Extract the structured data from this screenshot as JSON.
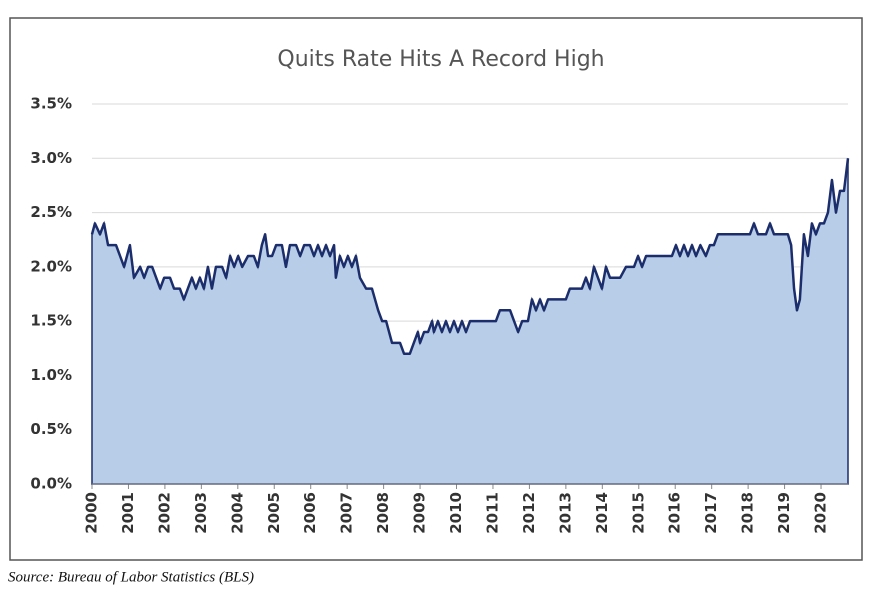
{
  "chart_data": {
    "type": "area",
    "title": "Quits Rate Hits A Record High",
    "source": "Source: Bureau of Labor Statistics (BLS)",
    "line_color": "#1c2d6b",
    "fill_color": "#b8cde8",
    "grid": true,
    "xlim": [
      2000,
      2020.74
    ],
    "xticks": [
      2000,
      2001,
      2002,
      2003,
      2004,
      2005,
      2006,
      2007,
      2008,
      2009,
      2010,
      2011,
      2012,
      2013,
      2014,
      2015,
      2016,
      2017,
      2018,
      2019,
      2020
    ],
    "ylim": [
      0,
      3.5
    ],
    "yticks": [
      {
        "value": 0,
        "label": "0.0%"
      },
      {
        "value": 0.5,
        "label": "0.5%"
      },
      {
        "value": 1,
        "label": "1.0%"
      },
      {
        "value": 1.5,
        "label": "1.5%"
      },
      {
        "value": 2,
        "label": "2.0%"
      },
      {
        "value": 2.5,
        "label": "2.5%"
      },
      {
        "value": 3,
        "label": "3.0%"
      },
      {
        "value": 3.5,
        "label": "3.5%"
      }
    ],
    "x": [
      2000.0,
      2000.08,
      2000.22,
      2000.33,
      2000.44,
      2000.66,
      2000.77,
      2000.88,
      2001.04,
      2001.15,
      2001.32,
      2001.43,
      2001.54,
      2001.65,
      2001.76,
      2001.87,
      2001.98,
      2002.14,
      2002.25,
      2002.41,
      2002.52,
      2002.63,
      2002.74,
      2002.85,
      2002.96,
      2003.07,
      2003.18,
      2003.29,
      2003.4,
      2003.57,
      2003.68,
      2003.79,
      2003.9,
      2004.01,
      2004.12,
      2004.28,
      2004.44,
      2004.55,
      2004.66,
      2004.75,
      2004.83,
      2004.94,
      2005.05,
      2005.21,
      2005.32,
      2005.43,
      2005.6,
      2005.71,
      2005.82,
      2005.98,
      2006.09,
      2006.2,
      2006.31,
      2006.42,
      2006.53,
      2006.64,
      2006.69,
      2006.8,
      2006.91,
      2007.02,
      2007.13,
      2007.24,
      2007.35,
      2007.52,
      2007.68,
      2007.85,
      2007.96,
      2008.07,
      2008.23,
      2008.45,
      2008.56,
      2008.72,
      2008.83,
      2008.94,
      2009.0,
      2009.11,
      2009.22,
      2009.33,
      2009.38,
      2009.49,
      2009.6,
      2009.71,
      2009.82,
      2009.93,
      2010.04,
      2010.15,
      2010.26,
      2010.37,
      2010.92,
      2011.08,
      2011.19,
      2011.47,
      2011.58,
      2011.69,
      2011.8,
      2011.96,
      2012.07,
      2012.18,
      2012.29,
      2012.4,
      2012.51,
      2013.0,
      2013.11,
      2013.44,
      2013.55,
      2013.66,
      2013.77,
      2013.88,
      2013.99,
      2014.1,
      2014.21,
      2014.49,
      2014.65,
      2014.87,
      2014.98,
      2015.09,
      2015.2,
      2015.31,
      2015.91,
      2016.02,
      2016.13,
      2016.24,
      2016.35,
      2016.46,
      2016.57,
      2016.69,
      2016.84,
      2016.95,
      2017.06,
      2017.17,
      2018.05,
      2018.16,
      2018.27,
      2018.49,
      2018.6,
      2018.71,
      2019.09,
      2019.18,
      2019.26,
      2019.34,
      2019.42,
      2019.53,
      2019.64,
      2019.75,
      2019.86,
      2019.97,
      2020.08,
      2020.19,
      2020.3,
      2020.41,
      2020.52,
      2020.63,
      2020.74
    ],
    "values": [
      2.3,
      2.4,
      2.3,
      2.4,
      2.2,
      2.2,
      2.1,
      2.0,
      2.2,
      1.9,
      2.0,
      1.9,
      2.0,
      2.0,
      1.9,
      1.8,
      1.9,
      1.9,
      1.8,
      1.8,
      1.7,
      1.8,
      1.9,
      1.8,
      1.9,
      1.8,
      2.0,
      1.8,
      2.0,
      2.0,
      1.9,
      2.1,
      2.0,
      2.1,
      2.0,
      2.1,
      2.1,
      2.0,
      2.2,
      2.3,
      2.1,
      2.1,
      2.2,
      2.2,
      2.0,
      2.2,
      2.2,
      2.1,
      2.2,
      2.2,
      2.1,
      2.2,
      2.1,
      2.2,
      2.1,
      2.2,
      1.9,
      2.1,
      2.0,
      2.1,
      2.0,
      2.1,
      1.9,
      1.8,
      1.8,
      1.6,
      1.5,
      1.5,
      1.3,
      1.3,
      1.2,
      1.2,
      1.3,
      1.4,
      1.3,
      1.4,
      1.4,
      1.5,
      1.4,
      1.5,
      1.4,
      1.5,
      1.4,
      1.5,
      1.4,
      1.5,
      1.4,
      1.5,
      1.5,
      1.5,
      1.6,
      1.6,
      1.5,
      1.4,
      1.5,
      1.5,
      1.7,
      1.6,
      1.7,
      1.6,
      1.7,
      1.7,
      1.8,
      1.8,
      1.9,
      1.8,
      2.0,
      1.9,
      1.8,
      2.0,
      1.9,
      1.9,
      2.0,
      2.0,
      2.1,
      2.0,
      2.1,
      2.1,
      2.1,
      2.2,
      2.1,
      2.2,
      2.1,
      2.2,
      2.1,
      2.2,
      2.1,
      2.2,
      2.2,
      2.3,
      2.3,
      2.4,
      2.3,
      2.3,
      2.4,
      2.3,
      2.3,
      2.2,
      1.8,
      1.6,
      1.7,
      2.3,
      2.1,
      2.4,
      2.3,
      2.4,
      2.4,
      2.5,
      2.8,
      2.5,
      2.7,
      2.7,
      3.0
    ]
  }
}
